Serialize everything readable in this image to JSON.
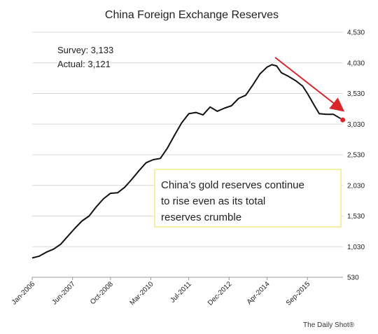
{
  "chart_data": {
    "type": "line",
    "title": "China Foreign Exchange Reserves",
    "xlabel": "",
    "ylabel": "",
    "ylim": [
      530,
      4530
    ],
    "yticks": [
      4530,
      4030,
      3530,
      3030,
      2530,
      2030,
      1530,
      1030,
      530
    ],
    "ytick_labels": [
      "4,530",
      "4,030",
      "3,530",
      "3,030",
      "2,530",
      "2,030",
      "1,530",
      "1,030",
      "530"
    ],
    "xlim": [
      "2006-01",
      "2016-12"
    ],
    "xticks": [
      "2006-01",
      "2007-06",
      "2008-10",
      "2010-03",
      "2011-07",
      "2012-12",
      "2014-04",
      "2015-09"
    ],
    "xtick_labels": [
      "Jan-2006",
      "Jun-2007",
      "Oct-2008",
      "Mar-2010",
      "Jul-2011",
      "Dec-2012",
      "Apr-2014",
      "Sep-2015"
    ],
    "grid": true,
    "line_color": "#111111",
    "series": [
      {
        "name": "",
        "points": [
          [
            "2006-01",
            845
          ],
          [
            "2006-04",
            875
          ],
          [
            "2006-07",
            940
          ],
          [
            "2006-10",
            990
          ],
          [
            "2007-01",
            1070
          ],
          [
            "2007-04",
            1200
          ],
          [
            "2007-07",
            1330
          ],
          [
            "2007-10",
            1450
          ],
          [
            "2008-01",
            1530
          ],
          [
            "2008-04",
            1680
          ],
          [
            "2008-07",
            1810
          ],
          [
            "2008-10",
            1900
          ],
          [
            "2009-01",
            1910
          ],
          [
            "2009-04",
            2000
          ],
          [
            "2009-07",
            2130
          ],
          [
            "2009-10",
            2270
          ],
          [
            "2010-01",
            2400
          ],
          [
            "2010-04",
            2450
          ],
          [
            "2010-07",
            2470
          ],
          [
            "2010-10",
            2640
          ],
          [
            "2011-01",
            2850
          ],
          [
            "2011-04",
            3050
          ],
          [
            "2011-07",
            3200
          ],
          [
            "2011-10",
            3220
          ],
          [
            "2012-01",
            3180
          ],
          [
            "2012-04",
            3310
          ],
          [
            "2012-07",
            3240
          ],
          [
            "2012-10",
            3290
          ],
          [
            "2013-01",
            3330
          ],
          [
            "2013-04",
            3450
          ],
          [
            "2013-07",
            3500
          ],
          [
            "2013-10",
            3670
          ],
          [
            "2014-01",
            3850
          ],
          [
            "2014-04",
            3960
          ],
          [
            "2014-06",
            4000
          ],
          [
            "2014-08",
            3980
          ],
          [
            "2014-10",
            3870
          ],
          [
            "2015-01",
            3810
          ],
          [
            "2015-04",
            3740
          ],
          [
            "2015-07",
            3650
          ],
          [
            "2015-09",
            3530
          ],
          [
            "2015-12",
            3330
          ],
          [
            "2016-02",
            3200
          ],
          [
            "2016-05",
            3190
          ],
          [
            "2016-08",
            3190
          ],
          [
            "2016-11",
            3121
          ]
        ]
      }
    ],
    "last_point_color": "#d9262b",
    "trend_arrow_color": "#d9262b",
    "annotations": {
      "survey": "Survey: 3,133",
      "actual": "Actual:  3,121",
      "note_lines": [
        "China’s gold reserves continue",
        "to rise even as its total",
        "reserves crumble"
      ],
      "note_border_color": "#f3ea8a"
    },
    "source": "The Daily Shot®"
  }
}
